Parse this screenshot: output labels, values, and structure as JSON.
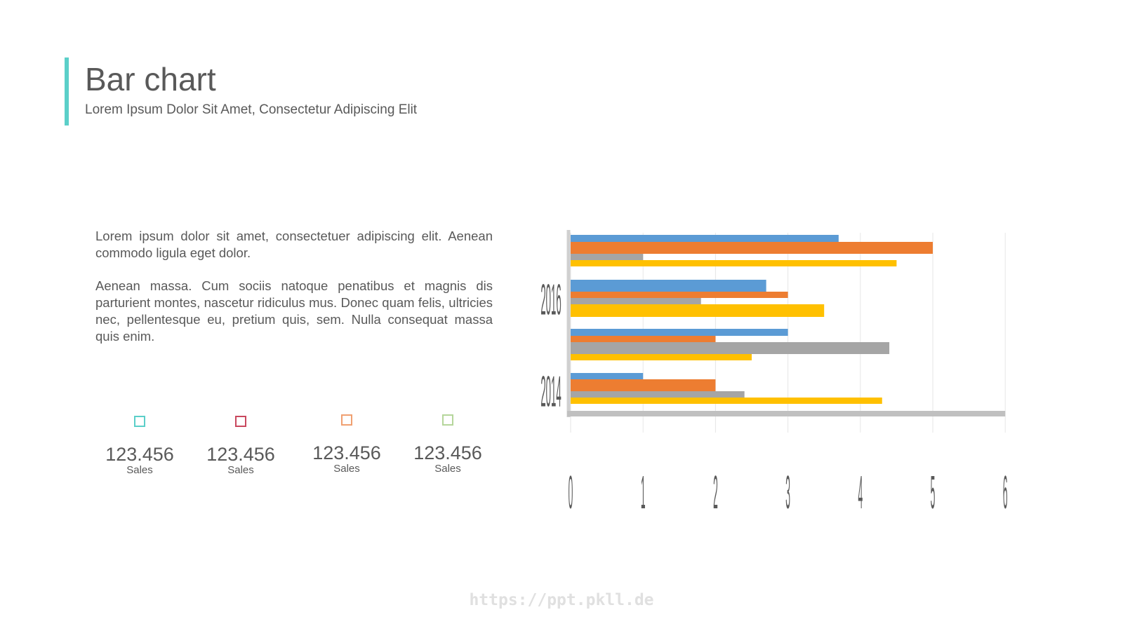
{
  "header": {
    "title": "Bar chart",
    "subtitle": "Lorem Ipsum Dolor Sit Amet, Consectetur Adipiscing Elit"
  },
  "body": {
    "paragraph_1": "Lorem ipsum dolor sit amet, consectetuer adipiscing elit. Aenean commodo ligula eget dolor.",
    "paragraph_2": "Aenean massa. Cum sociis natoque penatibus et magnis dis parturient montes, nascetur ridiculus mus. Donec quam felis, ultricies nec, pellentesque eu, pretium quis, sem. Nulla consequat massa quis enim."
  },
  "stats": [
    {
      "value": "123.456",
      "label": "Sales",
      "color": "#5bcfc9"
    },
    {
      "value": "123.456",
      "label": "Sales",
      "color": "#c9485e"
    },
    {
      "value": "123.456",
      "label": "Sales",
      "color": "#f0a071"
    },
    {
      "value": "123.456",
      "label": "Sales",
      "color": "#b5d69b"
    }
  ],
  "watermark": "https://ppt.pkll.de",
  "colors": {
    "accent": "#5bcfc9",
    "text": "#595959"
  },
  "chart_data": {
    "type": "bar",
    "orientation": "horizontal",
    "xlim": [
      0,
      6
    ],
    "x_ticks": [
      "0",
      "1",
      "2",
      "3",
      "4",
      "5",
      "6"
    ],
    "y_tick_labels": [
      "2016",
      "2014"
    ],
    "grid": true,
    "series_colors": [
      "#5b9bd5",
      "#ed7d31",
      "#a5a5a5",
      "#ffc000"
    ],
    "groups": [
      {
        "values": [
          3.7,
          5.0,
          1.0,
          4.5
        ]
      },
      {
        "values": [
          2.7,
          3.0,
          1.8,
          3.5
        ]
      },
      {
        "values": [
          3.0,
          2.0,
          4.4,
          2.5
        ]
      },
      {
        "values": [
          1.0,
          2.0,
          2.4,
          4.3
        ]
      }
    ],
    "baseline_bar": {
      "value": 6.0,
      "color": "#c0c0c0"
    }
  }
}
